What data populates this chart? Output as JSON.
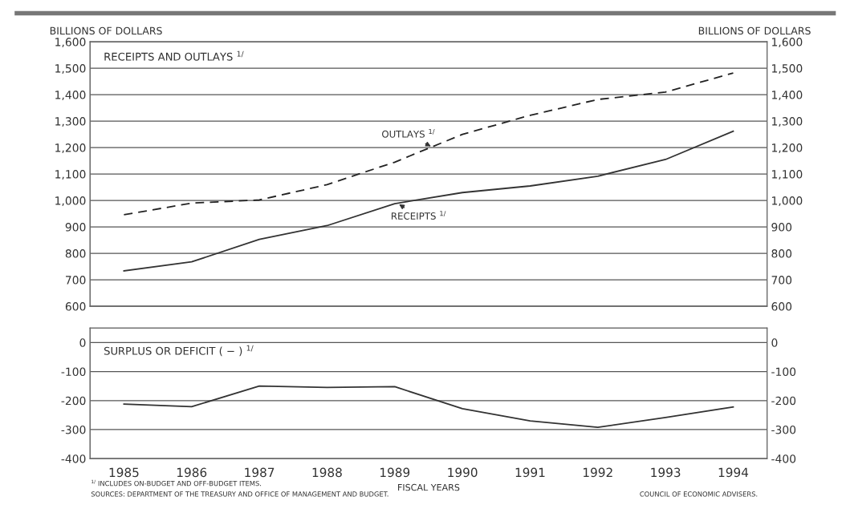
{
  "chart_data": [
    {
      "type": "line",
      "title": "RECEIPTS AND OUTLAYS $^{1/}$",
      "ylabel": "BILLIONS OF DOLLARS",
      "y2label": "BILLIONS OF DOLLARS",
      "categories": [
        "1985",
        "1986",
        "1987",
        "1988",
        "1989",
        "1990",
        "1991",
        "1992",
        "1993",
        "1994"
      ],
      "series": [
        {
          "name": "OUTLAYS $^{1/}$",
          "color": "#222222",
          "line_style": "dashed",
          "values": [
            946,
            990,
            1002,
            1060,
            1145,
            1250,
            1322,
            1382,
            1410,
            1482
          ]
        },
        {
          "name": "RECEIPTS $^{1/}$",
          "color": "#333333",
          "line_style": "solid",
          "values": [
            734,
            768,
            853,
            905,
            988,
            1030,
            1055,
            1092,
            1155,
            1262
          ]
        }
      ],
      "ylim": [
        600,
        1600
      ],
      "yticks": [
        600,
        700,
        800,
        900,
        {
          "value": 1000,
          "label": "1,000"
        },
        {
          "value": 1100,
          "label": "1,100"
        },
        {
          "value": 1200,
          "label": "1,200"
        },
        {
          "value": 1300,
          "label": "1,300"
        },
        {
          "value": 1400,
          "label": "1,400"
        },
        {
          "value": 1500,
          "label": "1,500"
        },
        {
          "value": 1600,
          "label": "1,600"
        }
      ],
      "y2lim": [
        600,
        1600
      ],
      "y2ticks": [
        600,
        700,
        800,
        900,
        {
          "value": 1000,
          "label": "1,000"
        },
        {
          "value": 1100,
          "label": "1,100"
        },
        {
          "value": 1200,
          "label": "1,200"
        },
        {
          "value": 1300,
          "label": "1,300"
        },
        {
          "value": 1400,
          "label": "1,400"
        },
        {
          "value": 1500,
          "label": "1,500"
        },
        {
          "value": 1600,
          "label": "1,600"
        }
      ],
      "grid": "y",
      "tick_labels": "y"
    },
    {
      "type": "line",
      "title": "SURPLUS OR DEFICIT ( − ) $^{1/}$",
      "xlabel": "FISCAL YEARS",
      "categories": [
        "1985",
        "1986",
        "1987",
        "1988",
        "1989",
        "1990",
        "1991",
        "1992",
        "1993",
        "1994"
      ],
      "series": [
        {
          "color": "#333333",
          "line_style": "solid",
          "values": [
            -212,
            -221,
            -150,
            -155,
            -152,
            -228,
            -270,
            -292,
            -258,
            -222
          ]
        }
      ],
      "ylim": [
        -400,
        50
      ],
      "yticks": [
        -400,
        -300,
        -200,
        -100,
        0
      ],
      "y2lim": [
        -400,
        50
      ],
      "y2ticks": [
        -400,
        -300,
        -200,
        -100,
        0
      ],
      "grid": "y",
      "annotations": [
        "$^{1/}$ INCLUDES ON-BUDGET AND OFF-BUDGET ITEMS.",
        "SOURCES: DEPARTMENT OF THE TREASURY AND OFFICE OF MANAGEMENT AND BUDGET.",
        "COUNCIL OF ECONOMIC ADVISERS."
      ]
    }
  ]
}
